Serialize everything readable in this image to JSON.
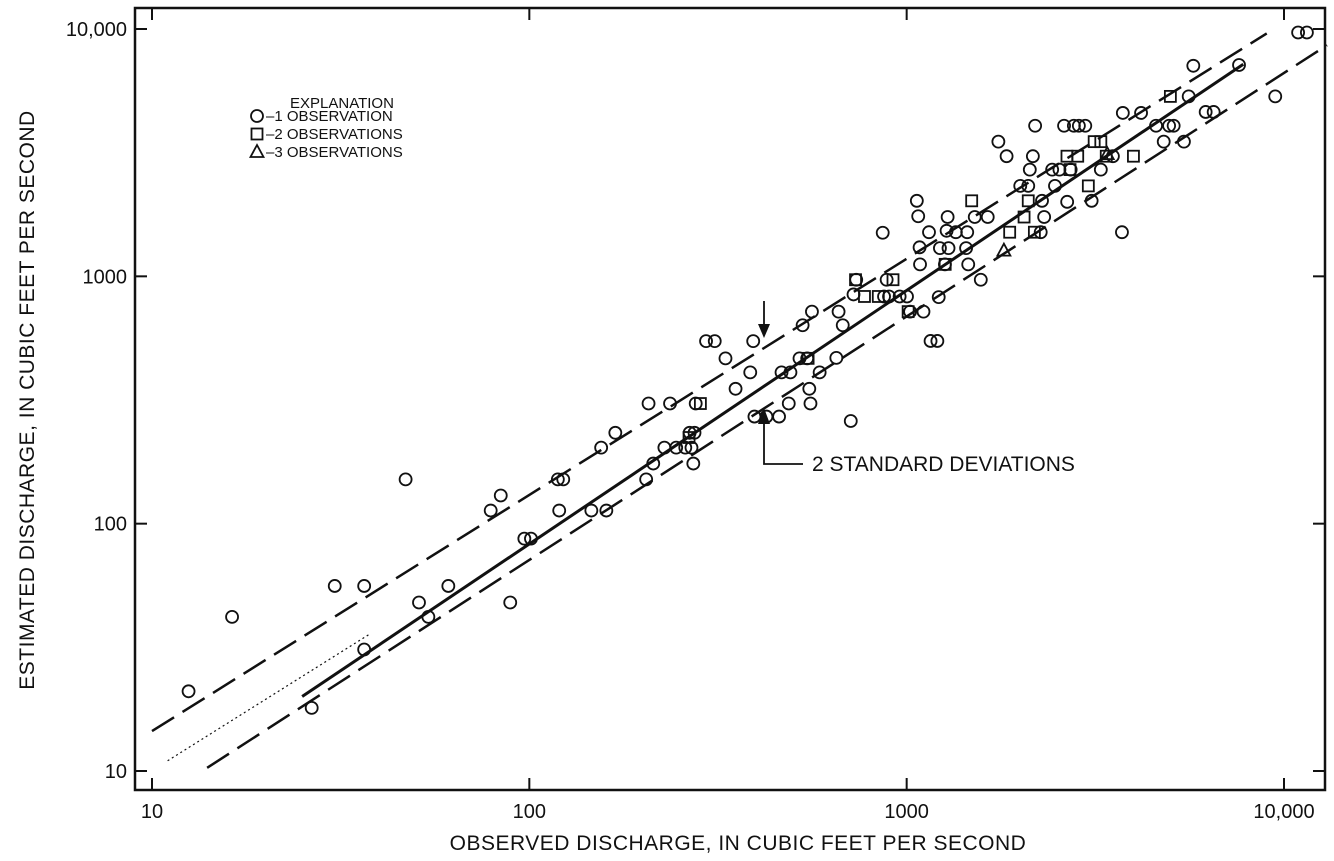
{
  "chart_data": {
    "type": "scatter",
    "title": "",
    "xlabel": "OBSERVED DISCHARGE, IN CUBIC FEET PER SECOND",
    "ylabel": "ESTIMATED DISCHARGE, IN CUBIC FEET PER SECOND",
    "x_scale": "log",
    "y_scale": "log",
    "xlim": [
      10,
      13000
    ],
    "ylim": [
      9,
      10000
    ],
    "x_ticks": [
      {
        "value": 10,
        "label": "10"
      },
      {
        "value": 100,
        "label": "100"
      },
      {
        "value": 1000,
        "label": "1000"
      },
      {
        "value": 10000,
        "label": "10,000"
      }
    ],
    "y_ticks": [
      {
        "value": 10,
        "label": "10"
      },
      {
        "value": 100,
        "label": "100"
      },
      {
        "value": 1000,
        "label": "1000"
      },
      {
        "value": 10000,
        "label": "10,000"
      }
    ],
    "grid": false,
    "legend": {
      "position": "top-left",
      "title": "EXPLANATION",
      "entries": [
        {
          "marker": "circle",
          "label": "–1 OBSERVATION"
        },
        {
          "marker": "square",
          "label": "–2 OBSERVATIONS"
        },
        {
          "marker": "triangle",
          "label": "–3 OBSERVATIONS"
        }
      ]
    },
    "annotations": [
      {
        "text": "2 STANDARD DEVIATIONS"
      }
    ],
    "lines": [
      {
        "style": "solid",
        "from": [
          25,
          20
        ],
        "to": [
          7800,
          7200
        ]
      },
      {
        "style": "dotted",
        "from": [
          11,
          11
        ],
        "to": [
          38,
          36
        ]
      },
      {
        "style": "dashed",
        "from": [
          10,
          14.5
        ],
        "to": [
          9000,
          9600
        ]
      },
      {
        "style": "dashed",
        "from": [
          14,
          10.3
        ],
        "to": [
          13000,
          8600
        ]
      }
    ],
    "series": [
      {
        "marker": "circle",
        "points": [
          [
            12.5,
            21
          ],
          [
            16.3,
            42
          ],
          [
            26.5,
            18
          ],
          [
            30.5,
            56
          ],
          [
            36.5,
            56
          ],
          [
            36.5,
            31
          ],
          [
            47,
            151
          ],
          [
            51,
            48
          ],
          [
            54,
            42
          ],
          [
            61,
            56
          ],
          [
            79,
            113
          ],
          [
            84,
            130
          ],
          [
            89,
            48
          ],
          [
            97,
            87
          ],
          [
            101,
            87
          ],
          [
            119,
            151
          ],
          [
            120,
            113
          ],
          [
            123,
            151
          ],
          [
            146,
            113
          ],
          [
            155,
            203
          ],
          [
            160,
            113
          ],
          [
            169,
            233
          ],
          [
            204,
            151
          ],
          [
            207,
            306
          ],
          [
            213,
            175
          ],
          [
            228,
            203
          ],
          [
            236,
            306
          ],
          [
            245,
            203
          ],
          [
            259,
            203
          ],
          [
            266,
            233
          ],
          [
            269,
            203
          ],
          [
            272,
            175
          ],
          [
            274,
            233
          ],
          [
            276,
            306
          ],
          [
            294,
            547
          ],
          [
            310,
            547
          ],
          [
            331,
            466
          ],
          [
            352,
            351
          ],
          [
            385,
            409
          ],
          [
            392,
            547
          ],
          [
            395,
            271
          ],
          [
            425,
            271
          ],
          [
            459,
            271
          ],
          [
            466,
            409
          ],
          [
            487,
            306
          ],
          [
            492,
            409
          ],
          [
            520,
            466
          ],
          [
            530,
            634
          ],
          [
            545,
            466
          ],
          [
            552,
            351
          ],
          [
            556,
            306
          ],
          [
            561,
            720
          ],
          [
            588,
            409
          ],
          [
            651,
            468
          ],
          [
            660,
            720
          ],
          [
            677,
            634
          ],
          [
            711,
            260
          ],
          [
            723,
            845
          ],
          [
            735,
            969
          ],
          [
            864,
            1500
          ],
          [
            871,
            829
          ],
          [
            885,
            969
          ],
          [
            898,
            829
          ],
          [
            958,
            829
          ],
          [
            1002,
            829
          ],
          [
            1021,
            720
          ],
          [
            1064,
            2020
          ],
          [
            1073,
            1750
          ],
          [
            1082,
            1310
          ],
          [
            1085,
            1118
          ],
          [
            1108,
            720
          ],
          [
            1146,
            1508
          ],
          [
            1157,
            548
          ],
          [
            1206,
            548
          ],
          [
            1216,
            824
          ],
          [
            1225,
            1300
          ],
          [
            1263,
            1118
          ],
          [
            1276,
            1528
          ],
          [
            1284,
            1737
          ],
          [
            1291,
            1300
          ],
          [
            1350,
            1508
          ],
          [
            1437,
            1300
          ],
          [
            1447,
            1508
          ],
          [
            1456,
            1118
          ],
          [
            1515,
            1737
          ],
          [
            1572,
            969
          ],
          [
            1640,
            1737
          ],
          [
            1750,
            3504
          ],
          [
            1840,
            3060
          ],
          [
            2000,
            2321
          ],
          [
            2100,
            2321
          ],
          [
            2120,
            2701
          ],
          [
            2160,
            3060
          ],
          [
            2190,
            4063
          ],
          [
            2266,
            1508
          ],
          [
            2284,
            2020
          ],
          [
            2314,
            1737
          ],
          [
            2430,
            2701
          ],
          [
            2472,
            2321
          ],
          [
            2540,
            2701
          ],
          [
            2613,
            4063
          ],
          [
            2663,
            2001
          ],
          [
            2720,
            2701
          ],
          [
            2774,
            4063
          ],
          [
            2860,
            4063
          ],
          [
            2974,
            4063
          ],
          [
            3092,
            2020
          ],
          [
            3270,
            2701
          ],
          [
            3520,
            3060
          ],
          [
            3720,
            1508
          ],
          [
            3740,
            4578
          ],
          [
            4180,
            4578
          ],
          [
            4580,
            4063
          ],
          [
            4800,
            3504
          ],
          [
            4960,
            4063
          ],
          [
            5100,
            4063
          ],
          [
            5430,
            3504
          ],
          [
            5590,
            5340
          ],
          [
            5750,
            7100
          ],
          [
            6200,
            4620
          ],
          [
            6510,
            4620
          ],
          [
            7600,
            7150
          ],
          [
            9480,
            5340
          ],
          [
            10900,
            9680
          ],
          [
            11500,
            9680
          ]
        ]
      },
      {
        "marker": "square",
        "points": [
          [
            265,
            223
          ],
          [
            284,
            306
          ],
          [
            548,
            466
          ],
          [
            732,
            969
          ],
          [
            773,
            829
          ],
          [
            841,
            829
          ],
          [
            920,
            969
          ],
          [
            1009,
            720
          ],
          [
            1265,
            1118
          ],
          [
            1487,
            2020
          ],
          [
            1875,
            1508
          ],
          [
            2047,
            1737
          ],
          [
            2100,
            2020
          ],
          [
            2180,
            1508
          ],
          [
            2660,
            3060
          ],
          [
            2710,
            2701
          ],
          [
            2840,
            3060
          ],
          [
            3030,
            2321
          ],
          [
            3140,
            3504
          ],
          [
            3270,
            3504
          ],
          [
            3380,
            3060
          ],
          [
            3990,
            3060
          ],
          [
            4999,
            5340
          ]
        ]
      },
      {
        "marker": "triangle",
        "points": [
          [
            1810,
            1270
          ],
          [
            3400,
            3120
          ]
        ]
      }
    ]
  }
}
